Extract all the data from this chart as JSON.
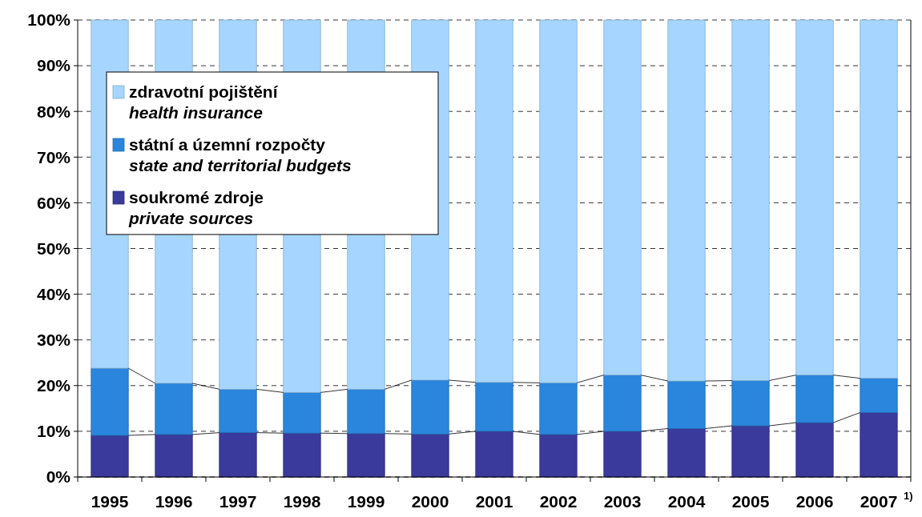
{
  "chart_data": {
    "type": "bar",
    "stacked": true,
    "categories": [
      "1995",
      "1996",
      "1997",
      "1998",
      "1999",
      "2000",
      "2001",
      "2002",
      "2003",
      "2004",
      "2005",
      "2006",
      "2007"
    ],
    "series": [
      {
        "name": "soukromé zdroje\nprivate sources",
        "color": "#3a3a9c",
        "values": [
          9.1,
          9.3,
          9.7,
          9.6,
          9.5,
          9.4,
          10.0,
          9.3,
          10.0,
          10.6,
          11.2,
          11.9,
          14.1
        ]
      },
      {
        "name": "státní a územní rozpočty\nstate and territorial budgets",
        "color": "#2a86dc",
        "values": [
          14.7,
          11.2,
          9.5,
          8.9,
          9.7,
          11.8,
          10.7,
          11.3,
          12.3,
          10.4,
          9.9,
          10.4,
          7.5
        ]
      },
      {
        "name": "zdravotní pojištění\nhealth insurance",
        "color": "#a6d6ff",
        "values": [
          76.2,
          79.5,
          80.8,
          81.5,
          80.8,
          78.8,
          79.3,
          79.4,
          77.7,
          79.0,
          78.9,
          77.7,
          78.4
        ]
      }
    ],
    "ylim": [
      0,
      100
    ],
    "yticks": [
      {
        "value": 0,
        "label": "0%"
      },
      {
        "value": 10,
        "label": "10%"
      },
      {
        "value": 20,
        "label": "20%"
      },
      {
        "value": 30,
        "label": "30%"
      },
      {
        "value": 40,
        "label": "40%"
      },
      {
        "value": 50,
        "label": "50%"
      },
      {
        "value": 60,
        "label": "60%"
      },
      {
        "value": 70,
        "label": "70%"
      },
      {
        "value": 80,
        "label": "80%"
      },
      {
        "value": 90,
        "label": "90%"
      },
      {
        "value": 100,
        "label": "100%"
      }
    ],
    "grid": "y",
    "legend": "top left",
    "annotations": [
      "1)"
    ]
  }
}
